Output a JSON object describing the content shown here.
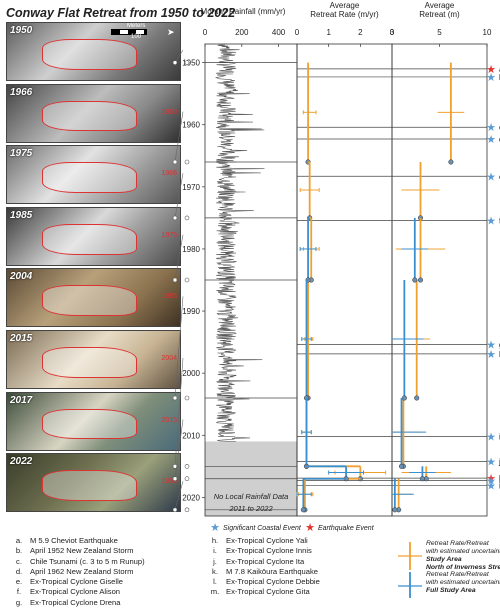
{
  "title": "Conway Flat Retreat from 1950 to 2022",
  "photos": [
    {
      "year": "1950",
      "date": "",
      "bg": "linear-gradient(135deg,#5c5c5c,#cfcfcf 40%,#7a7a7a 70%,#3a3a3a)"
    },
    {
      "year": "1966",
      "date": "1950",
      "bg": "linear-gradient(135deg,#444,#bdbdbd 45%,#888 70%,#2f2f2f)"
    },
    {
      "year": "1975",
      "date": "1966",
      "bg": "linear-gradient(135deg,#6b6b6b,#e2e2e2 40%,#9a9a9a 70%,#555)"
    },
    {
      "year": "1985",
      "date": "1975",
      "bg": "linear-gradient(135deg,#3a3a3a,#d9d9d9 45%,#a0a0a0 65%,#4a4a4a)"
    },
    {
      "year": "2004",
      "date": "1985",
      "bg": "linear-gradient(135deg,#5a4a34,#b8a07a 40%,#8c7350 70%,#3e3223)"
    },
    {
      "year": "2015",
      "date": "2004",
      "bg": "linear-gradient(135deg,#7a6a52,#e8dcc6 45%,#c7b393 70%,#5e5140)"
    },
    {
      "year": "2017",
      "date": "2015",
      "bg": "linear-gradient(135deg,#3d4d3a,#d8d4c2 45%,#7f8f7a 65%,#4a6a7a)"
    },
    {
      "year": "2022",
      "date": "1950",
      "bg": "linear-gradient(135deg,#3a3d2a,#6e7050 40%,#9aa07a 65%,#2d3a4a)"
    }
  ],
  "scale_label": "Meters",
  "scale_value": "100",
  "panel_titles": {
    "rainfall": "Monthy Rainfall (mm/yr)",
    "rate": "Average Retreat Rate (m/yr)",
    "retreat": "Average Retreat (m)"
  },
  "no_data_note": "No Local Rainfall Data 2011 to 2022",
  "marker_legend": {
    "coastal": "Significant Coastal Event",
    "earthquake": "Earthquake Event"
  },
  "colors": {
    "orange": "#f0a030",
    "blue": "#3a8fd0",
    "gray": "#555555",
    "coastal_star": "#5b9bd5",
    "quake_star": "#e0342f"
  },
  "line_legend": {
    "orange_lines": [
      "Retreat Rate/Retreat",
      "with estimated uncertainty",
      "Study Area",
      "North of Inverness Stream"
    ],
    "blue_lines": [
      "Retreat Rate/Retreat",
      "with estimated uncertainty",
      "Full Study Area"
    ]
  },
  "events_legend": [
    {
      "key": "a.",
      "label": "M 5.9 Cheviot Earthquake"
    },
    {
      "key": "b.",
      "label": "April 1952 New Zealand Storm"
    },
    {
      "key": "c.",
      "label": "Chile Tsunami (c. 3 to 5 m Runup)"
    },
    {
      "key": "d.",
      "label": "April 1962 New Zealand Storm"
    },
    {
      "key": "e.",
      "label": "Ex-Tropical Cyclone Giselle"
    },
    {
      "key": "f.",
      "label": "Ex-Tropical Cyclone Alison"
    },
    {
      "key": "g.",
      "label": "Ex-Tropical Cyclone Drena"
    },
    {
      "key": "h.",
      "label": "Ex-Tropical Cyclone Yali"
    },
    {
      "key": "i.",
      "label": "Ex-Tropical Cyclone Innis"
    },
    {
      "key": "j.",
      "label": "Ex-Tropical Cyclone Ita"
    },
    {
      "key": "k.",
      "label": "M 7.8 Kaikōura Earthquake"
    },
    {
      "key": "l.",
      "label": "Ex-Tropical Cyclone Debbie"
    },
    {
      "key": "m.",
      "label": "Ex-Tropical Cyclone Gita"
    }
  ],
  "chart_data": [
    {
      "type": "line",
      "name": "rainfall",
      "title": "Monthy Rainfall (mm/yr)",
      "xlabel": "",
      "ylabel": "",
      "xlim": [
        0,
        500
      ],
      "xticks": [
        0,
        200,
        400
      ],
      "ylim": [
        1947,
        2023
      ],
      "yticks": [
        1950,
        1960,
        1970,
        1980,
        1990,
        2000,
        2010,
        2020
      ],
      "no_data_range": [
        2011,
        2022
      ]
    },
    {
      "type": "line",
      "name": "retreat_rate",
      "title": "Average Retreat Rate (m/yr)",
      "xlim": [
        0,
        3
      ],
      "xticks": [
        0,
        1,
        2,
        3
      ],
      "ylim": [
        1947,
        2023
      ],
      "series": [
        {
          "name": "Study Area North of Inverness Stream",
          "color": "orange",
          "intervals": [
            [
              1950,
              1966,
              0.35,
              0.2,
              0.6
            ],
            [
              1966,
              1975,
              0.4,
              0.1,
              0.7
            ],
            [
              1975,
              1985,
              0.45,
              0.2,
              0.7
            ],
            [
              1985,
              2004,
              0.35,
              0.25,
              0.5
            ],
            [
              2004,
              2015,
              0.3,
              0.15,
              0.45
            ],
            [
              2015,
              2017,
              2.0,
              1.2,
              2.8
            ],
            [
              2017,
              2022,
              0.25,
              0.05,
              0.5
            ]
          ]
        },
        {
          "name": "Full Study Area",
          "color": "blue",
          "intervals": [
            [
              1975,
              1985,
              0.35,
              0.1,
              0.6
            ],
            [
              1985,
              2004,
              0.3,
              0.15,
              0.45
            ],
            [
              2004,
              2015,
              0.3,
              0.15,
              0.45
            ],
            [
              2015,
              2017,
              1.55,
              1.0,
              2.1
            ],
            [
              2017,
              2022,
              0.2,
              0.0,
              0.45
            ]
          ]
        }
      ]
    },
    {
      "type": "line",
      "name": "retreat",
      "title": "Average Retreat (m)",
      "xlim": [
        0,
        10
      ],
      "xticks": [
        0,
        5,
        10
      ],
      "ylim": [
        1947,
        2023
      ],
      "series": [
        {
          "name": "Study Area North of Inverness Stream",
          "color": "orange",
          "points": [
            [
              1950,
              6.2
            ],
            [
              1966,
              6.2
            ],
            [
              1975,
              3.0
            ],
            [
              1985,
              3.0
            ],
            [
              2004,
              2.6
            ],
            [
              2015,
              1.2
            ],
            [
              2017,
              3.6
            ],
            [
              2022,
              0.7
            ]
          ]
        },
        {
          "name": "Full Study Area",
          "color": "blue",
          "points": [
            [
              1975,
              2.1
            ],
            [
              1985,
              2.4
            ],
            [
              2004,
              1.3
            ],
            [
              2015,
              1.0
            ],
            [
              2017,
              3.2
            ],
            [
              2022,
              0.3
            ]
          ]
        }
      ]
    }
  ],
  "event_years": [
    {
      "key": "a.",
      "year": 1951,
      "type": "earthquake"
    },
    {
      "key": "b.",
      "year": 1952.3,
      "type": "coastal"
    },
    {
      "key": "c.",
      "year": 1960.4,
      "type": "coastal"
    },
    {
      "key": "d.",
      "year": 1962.3,
      "type": "coastal"
    },
    {
      "key": "e.",
      "year": 1968.3,
      "type": "coastal"
    },
    {
      "key": "f.",
      "year": 1975.4,
      "type": "coastal"
    },
    {
      "key": "g.",
      "year": 1995.4,
      "type": "coastal"
    },
    {
      "key": "h.",
      "year": 1996.9,
      "type": "coastal"
    },
    {
      "key": "i.",
      "year": 2010.2,
      "type": "coastal"
    },
    {
      "key": "j.",
      "year": 2014.2,
      "type": "coastal"
    },
    {
      "key": "k.",
      "year": 2016.9,
      "type": "earthquake"
    },
    {
      "key": "l.",
      "year": 2017.3,
      "type": "coastal"
    },
    {
      "key": "m.",
      "year": 2018.1,
      "type": "coastal"
    }
  ]
}
